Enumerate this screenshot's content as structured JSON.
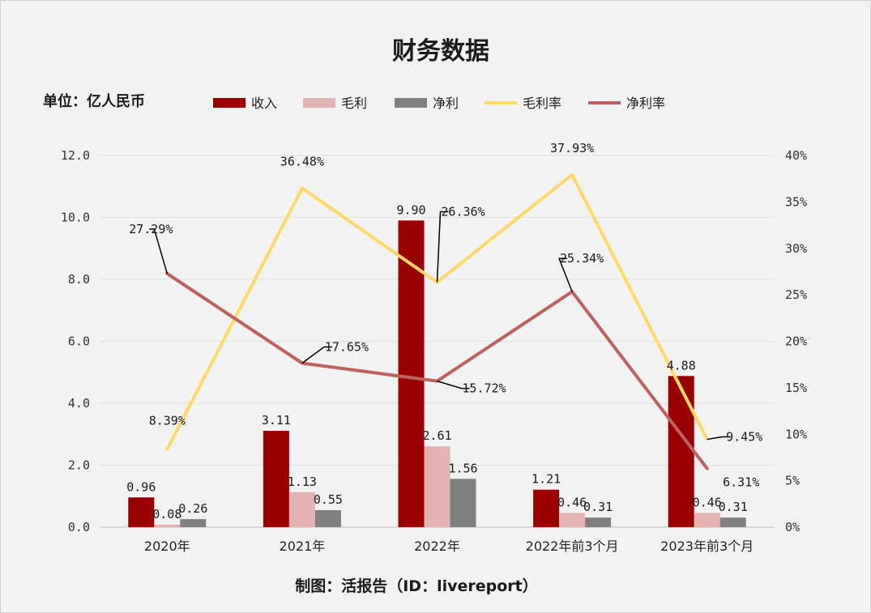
{
  "chart_data": {
    "type": "bar",
    "title": "财务数据",
    "unit_label": "单位：亿人民币",
    "footer": "制图：活报告（ID：livereport）",
    "categories": [
      "2020年",
      "2021年",
      "2022年",
      "2022年前3个月",
      "2023年前3个月"
    ],
    "series": [
      {
        "name": "收入",
        "kind": "bar",
        "axis": "left",
        "color": "#9b0000",
        "values": [
          0.96,
          3.11,
          9.9,
          1.21,
          4.88
        ],
        "labels": [
          "0.96",
          "3.11",
          "9.90",
          "1.21",
          "4.88"
        ]
      },
      {
        "name": "毛利",
        "kind": "bar",
        "axis": "left",
        "color": "#e3b3b3",
        "values": [
          0.08,
          1.13,
          2.61,
          0.46,
          0.46
        ],
        "labels": [
          "0.08",
          "1.13",
          "2.61",
          "0.46",
          "0.46"
        ]
      },
      {
        "name": "净利",
        "kind": "bar",
        "axis": "left",
        "color": "#808080",
        "values": [
          0.26,
          0.55,
          1.56,
          0.31,
          0.31
        ],
        "labels": [
          "0.26",
          "0.55",
          "1.56",
          "0.31",
          "0.31"
        ]
      },
      {
        "name": "毛利率",
        "kind": "line",
        "axis": "right",
        "color": "#ffd966",
        "values": [
          8.39,
          36.48,
          26.36,
          37.93,
          9.45
        ],
        "labels": [
          "8.39%",
          "36.48%",
          "26.36%",
          "37.93%",
          "9.45%"
        ]
      },
      {
        "name": "净利率",
        "kind": "line",
        "axis": "right",
        "color": "#c0605f",
        "values": [
          27.29,
          17.65,
          15.72,
          25.34,
          6.31
        ],
        "labels": [
          "27.29%",
          "17.65%",
          "15.72%",
          "25.34%",
          "6.31%"
        ]
      }
    ],
    "y_left": {
      "min": 0,
      "max": 12,
      "ticks": [
        "0.0",
        "2.0",
        "4.0",
        "6.0",
        "8.0",
        "10.0",
        "12.0"
      ]
    },
    "y_right": {
      "min": 0,
      "max": 40,
      "ticks": [
        "0%",
        "5%",
        "10%",
        "15%",
        "20%",
        "25%",
        "30%",
        "35%",
        "40%"
      ]
    },
    "grid": true,
    "legend_position": "top"
  }
}
